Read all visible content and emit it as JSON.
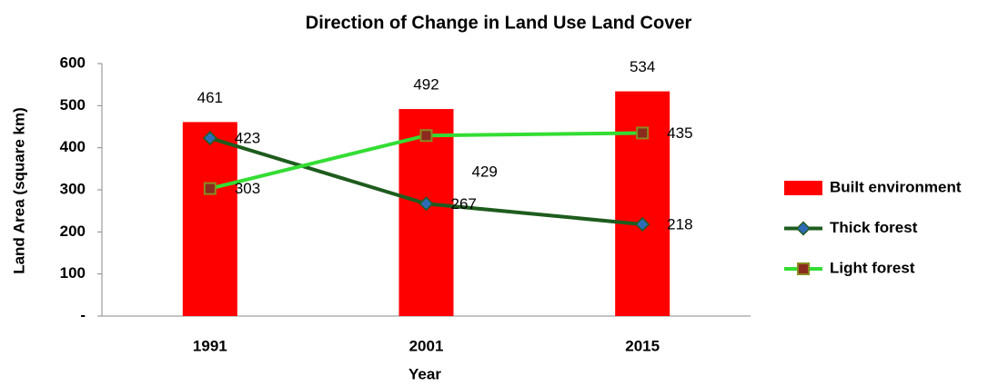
{
  "chart_data": {
    "type": "combo",
    "title": "Direction of Change in Land Use Land Cover",
    "x_label": "Year",
    "y_label": "Land Area (square km)",
    "categories": [
      "1991",
      "2001",
      "2015"
    ],
    "ylim": [
      0,
      600
    ],
    "yticks": [
      {
        "value": 0,
        "label": "-"
      },
      100,
      200,
      300,
      400,
      500,
      600
    ],
    "legend": "right",
    "series": [
      {
        "name": "Built environment",
        "type": "bar",
        "color": "#ff0000",
        "values": [
          461,
          492,
          534
        ]
      },
      {
        "name": "Thick forest",
        "type": "line",
        "color": "#1e5c1e",
        "marker": "diamond",
        "marker_color": "#2e6bb5",
        "values": [
          423,
          267,
          218
        ]
      },
      {
        "name": "Light forest",
        "type": "line",
        "color": "#33dd33",
        "marker": "square",
        "marker_color": "#8b2a1e",
        "values": [
          303,
          429,
          435
        ]
      }
    ]
  }
}
